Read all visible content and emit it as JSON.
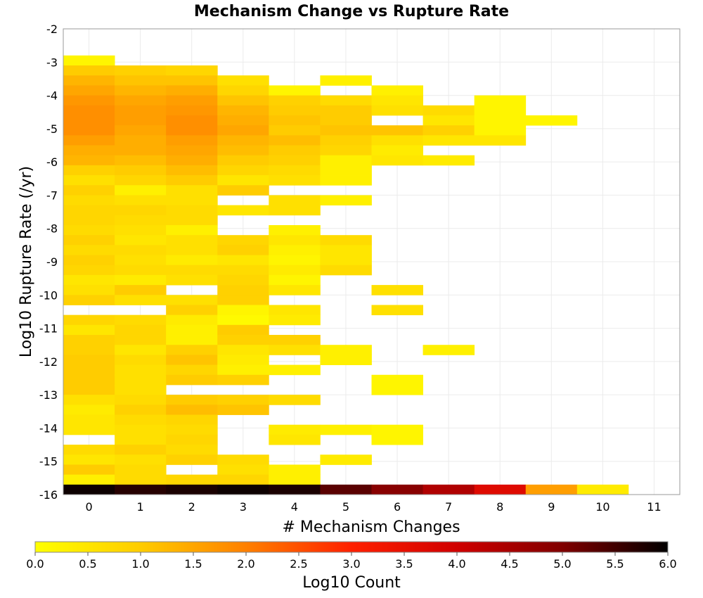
{
  "chart_data": {
    "type": "heatmap",
    "title": "Mechanism Change vs Rupture Rate",
    "xlabel": "# Mechanism Changes",
    "ylabel": "Log10 Rupture Rate (/yr)",
    "x_ticks": [
      "0",
      "1",
      "2",
      "3",
      "4",
      "5",
      "6",
      "7",
      "8",
      "9",
      "10",
      "11"
    ],
    "y_ticks": [
      "-2",
      "-3",
      "-4",
      "-5",
      "-6",
      "-7",
      "-8",
      "-9",
      "-10",
      "-11",
      "-12",
      "-13",
      "-14",
      "-15",
      "-16"
    ],
    "xlim": [
      -0.5,
      11.5
    ],
    "ylim": [
      -16,
      -2
    ],
    "y_bin_width": 0.3,
    "colorbar": {
      "label": "Log10 Count",
      "range": [
        0,
        6
      ],
      "ticks": [
        "0.0",
        "0.5",
        "1.0",
        "1.5",
        "2.0",
        "2.5",
        "3.0",
        "3.5",
        "4.0",
        "4.5",
        "5.0",
        "5.5",
        "6.0"
      ],
      "stops": [
        "#ffff00",
        "#ffcc00",
        "#ff8000",
        "#ff2000",
        "#d00000",
        "#800000",
        "#000000"
      ]
    },
    "grid": true,
    "columns": [
      {
        "x": 0,
        "cells": [
          [
            -3.1,
            0.2
          ],
          [
            -3.4,
            1.0
          ],
          [
            -3.7,
            1.3
          ],
          [
            -4.0,
            1.5
          ],
          [
            -4.3,
            1.7
          ],
          [
            -4.6,
            1.8
          ],
          [
            -4.9,
            1.8
          ],
          [
            -5.2,
            1.8
          ],
          [
            -5.5,
            1.6
          ],
          [
            -5.8,
            1.4
          ],
          [
            -6.1,
            1.3
          ],
          [
            -6.4,
            0.9
          ],
          [
            -6.7,
            0.6
          ],
          [
            -7.0,
            0.9
          ],
          [
            -7.3,
            0.7
          ],
          [
            -7.6,
            0.8
          ],
          [
            -7.9,
            0.8
          ],
          [
            -8.2,
            0.7
          ],
          [
            -8.5,
            0.9
          ],
          [
            -8.8,
            0.7
          ],
          [
            -9.1,
            0.9
          ],
          [
            -9.4,
            0.8
          ],
          [
            -9.7,
            0.5
          ],
          [
            -10.0,
            0.6
          ],
          [
            -10.3,
            0.9
          ],
          [
            -10.9,
            0.8
          ],
          [
            -11.2,
            0.5
          ],
          [
            -11.5,
            0.9
          ],
          [
            -11.8,
            0.9
          ],
          [
            -12.1,
            1.0
          ],
          [
            -12.4,
            1.0
          ],
          [
            -12.7,
            1.0
          ],
          [
            -13.0,
            1.0
          ],
          [
            -13.3,
            0.6
          ],
          [
            -13.6,
            0.4
          ],
          [
            -13.9,
            0.5
          ],
          [
            -14.2,
            0.5
          ],
          [
            -14.8,
            0.7
          ],
          [
            -15.1,
            0.5
          ],
          [
            -15.4,
            1.0
          ],
          [
            -15.7,
            0.3
          ],
          [
            -16.0,
            5.9
          ]
        ]
      },
      {
        "x": 1,
        "cells": [
          [
            -3.4,
            0.9
          ],
          [
            -3.7,
            1.1
          ],
          [
            -4.0,
            1.3
          ],
          [
            -4.3,
            1.5
          ],
          [
            -4.6,
            1.6
          ],
          [
            -4.9,
            1.6
          ],
          [
            -5.2,
            1.5
          ],
          [
            -5.5,
            1.4
          ],
          [
            -5.8,
            1.4
          ],
          [
            -6.1,
            1.2
          ],
          [
            -6.4,
            1.0
          ],
          [
            -6.7,
            0.8
          ],
          [
            -7.0,
            0.3
          ],
          [
            -7.3,
            0.6
          ],
          [
            -7.6,
            0.8
          ],
          [
            -7.9,
            0.7
          ],
          [
            -8.2,
            0.6
          ],
          [
            -8.5,
            0.5
          ],
          [
            -8.8,
            0.7
          ],
          [
            -9.1,
            0.6
          ],
          [
            -9.4,
            0.7
          ],
          [
            -9.7,
            0.4
          ],
          [
            -10.0,
            1.0
          ],
          [
            -10.3,
            0.6
          ],
          [
            -10.9,
            0.7
          ],
          [
            -11.2,
            0.8
          ],
          [
            -11.5,
            0.8
          ],
          [
            -11.8,
            0.5
          ],
          [
            -12.1,
            0.7
          ],
          [
            -12.4,
            0.6
          ],
          [
            -12.7,
            0.6
          ],
          [
            -13.0,
            0.6
          ],
          [
            -13.3,
            0.7
          ],
          [
            -13.6,
            0.9
          ],
          [
            -13.9,
            0.7
          ],
          [
            -14.2,
            0.6
          ],
          [
            -14.5,
            0.6
          ],
          [
            -14.8,
            0.9
          ],
          [
            -15.1,
            0.6
          ],
          [
            -15.4,
            0.7
          ],
          [
            -15.7,
            0.7
          ],
          [
            -16.0,
            5.7
          ]
        ]
      },
      {
        "x": 2,
        "cells": [
          [
            -3.4,
            0.8
          ],
          [
            -3.7,
            1.1
          ],
          [
            -4.0,
            1.4
          ],
          [
            -4.3,
            1.6
          ],
          [
            -4.6,
            1.7
          ],
          [
            -4.9,
            1.8
          ],
          [
            -5.2,
            1.8
          ],
          [
            -5.5,
            1.6
          ],
          [
            -5.8,
            1.5
          ],
          [
            -6.1,
            1.4
          ],
          [
            -6.4,
            1.2
          ],
          [
            -6.7,
            1.0
          ],
          [
            -7.0,
            0.6
          ],
          [
            -7.3,
            0.6
          ],
          [
            -7.6,
            0.7
          ],
          [
            -7.9,
            0.7
          ],
          [
            -8.2,
            0.3
          ],
          [
            -8.5,
            0.6
          ],
          [
            -8.8,
            0.6
          ],
          [
            -9.1,
            0.4
          ],
          [
            -9.4,
            0.7
          ],
          [
            -9.7,
            0.6
          ],
          [
            -10.3,
            0.6
          ],
          [
            -10.6,
            0.9
          ],
          [
            -10.9,
            0.4
          ],
          [
            -11.2,
            0.3
          ],
          [
            -11.5,
            0.3
          ],
          [
            -11.8,
            0.9
          ],
          [
            -12.1,
            1.1
          ],
          [
            -12.4,
            0.8
          ],
          [
            -12.7,
            1.0
          ],
          [
            -13.3,
            1.0
          ],
          [
            -13.6,
            1.2
          ],
          [
            -13.9,
            0.8
          ],
          [
            -14.2,
            0.7
          ],
          [
            -14.5,
            0.8
          ],
          [
            -14.8,
            0.7
          ],
          [
            -15.1,
            0.9
          ],
          [
            -15.7,
            0.8
          ],
          [
            -16.0,
            5.8
          ]
        ]
      },
      {
        "x": 3,
        "cells": [
          [
            -3.7,
            0.6
          ],
          [
            -4.0,
            0.8
          ],
          [
            -4.3,
            1.1
          ],
          [
            -4.6,
            1.3
          ],
          [
            -4.9,
            1.4
          ],
          [
            -5.2,
            1.5
          ],
          [
            -5.5,
            1.3
          ],
          [
            -5.8,
            1.2
          ],
          [
            -6.1,
            1.0
          ],
          [
            -6.4,
            0.8
          ],
          [
            -6.7,
            0.5
          ],
          [
            -7.0,
            1.0
          ],
          [
            -7.6,
            0.5
          ],
          [
            -8.5,
            0.8
          ],
          [
            -8.8,
            0.9
          ],
          [
            -9.1,
            0.5
          ],
          [
            -9.4,
            0.7
          ],
          [
            -9.7,
            0.8
          ],
          [
            -10.0,
            0.9
          ],
          [
            -10.3,
            0.9
          ],
          [
            -10.6,
            0.2
          ],
          [
            -10.9,
            0.1
          ],
          [
            -11.2,
            1.0
          ],
          [
            -11.5,
            0.9
          ],
          [
            -11.8,
            0.5
          ],
          [
            -12.1,
            0.4
          ],
          [
            -12.4,
            0.3
          ],
          [
            -12.7,
            0.9
          ],
          [
            -13.3,
            0.9
          ],
          [
            -13.6,
            1.1
          ],
          [
            -15.1,
            0.7
          ],
          [
            -15.4,
            0.6
          ],
          [
            -15.7,
            0.8
          ],
          [
            -16.0,
            5.9
          ]
        ]
      },
      {
        "x": 4,
        "cells": [
          [
            -4.0,
            0.2
          ],
          [
            -4.3,
            0.9
          ],
          [
            -4.6,
            1.0
          ],
          [
            -4.9,
            1.1
          ],
          [
            -5.2,
            1.0
          ],
          [
            -5.5,
            1.2
          ],
          [
            -5.8,
            1.0
          ],
          [
            -6.1,
            0.9
          ],
          [
            -6.4,
            0.7
          ],
          [
            -6.7,
            0.6
          ],
          [
            -7.3,
            0.6
          ],
          [
            -7.6,
            0.6
          ],
          [
            -8.2,
            0.3
          ],
          [
            -8.5,
            0.5
          ],
          [
            -8.8,
            0.3
          ],
          [
            -9.1,
            0.2
          ],
          [
            -9.4,
            0.4
          ],
          [
            -9.7,
            0.2
          ],
          [
            -10.0,
            0.5
          ],
          [
            -10.6,
            0.5
          ],
          [
            -10.9,
            0.4
          ],
          [
            -11.5,
            0.9
          ],
          [
            -11.8,
            0.6
          ],
          [
            -12.4,
            0.3
          ],
          [
            -13.3,
            0.7
          ],
          [
            -14.2,
            0.4
          ],
          [
            -14.5,
            0.5
          ],
          [
            -15.4,
            0.3
          ],
          [
            -15.7,
            0.3
          ],
          [
            -16.0,
            5.8
          ]
        ]
      },
      {
        "x": 5,
        "cells": [
          [
            -3.7,
            0.3
          ],
          [
            -4.3,
            0.7
          ],
          [
            -4.6,
            1.0
          ],
          [
            -4.9,
            1.0
          ],
          [
            -5.2,
            1.1
          ],
          [
            -5.5,
            0.9
          ],
          [
            -5.8,
            0.8
          ],
          [
            -6.1,
            0.3
          ],
          [
            -6.4,
            0.3
          ],
          [
            -6.7,
            0.3
          ],
          [
            -7.3,
            0.3
          ],
          [
            -8.5,
            0.7
          ],
          [
            -8.8,
            0.5
          ],
          [
            -9.1,
            0.5
          ],
          [
            -9.4,
            0.7
          ],
          [
            -11.8,
            0.3
          ],
          [
            -12.1,
            0.3
          ],
          [
            -14.2,
            0.3
          ],
          [
            -15.1,
            0.4
          ],
          [
            -16.0,
            5.3
          ]
        ]
      },
      {
        "x": 6,
        "cells": [
          [
            -4.0,
            0.3
          ],
          [
            -4.3,
            0.5
          ],
          [
            -4.6,
            0.6
          ],
          [
            -5.2,
            1.1
          ],
          [
            -5.5,
            0.6
          ],
          [
            -5.8,
            0.4
          ],
          [
            -6.1,
            0.5
          ],
          [
            -10.0,
            0.6
          ],
          [
            -10.6,
            0.6
          ],
          [
            -12.7,
            0.2
          ],
          [
            -13.0,
            0.2
          ],
          [
            -14.2,
            0.2
          ],
          [
            -14.5,
            0.2
          ],
          [
            -16.0,
            4.9
          ]
        ]
      },
      {
        "x": 7,
        "cells": [
          [
            -4.6,
            0.7
          ],
          [
            -4.9,
            0.5
          ],
          [
            -5.2,
            0.9
          ],
          [
            -5.5,
            0.5
          ],
          [
            -6.1,
            0.4
          ],
          [
            -11.8,
            0.3
          ],
          [
            -16.0,
            4.4
          ]
        ]
      },
      {
        "x": 8,
        "cells": [
          [
            -4.3,
            0.2
          ],
          [
            -4.6,
            0.2
          ],
          [
            -4.9,
            0.2
          ],
          [
            -5.2,
            0.2
          ],
          [
            -5.5,
            0.5
          ],
          [
            -16.0,
            3.7
          ]
        ]
      },
      {
        "x": 9,
        "cells": [
          [
            -4.9,
            0.2
          ],
          [
            -16.0,
            1.6
          ]
        ]
      },
      {
        "x": 10,
        "cells": [
          [
            -16.0,
            0.4
          ]
        ]
      }
    ]
  }
}
